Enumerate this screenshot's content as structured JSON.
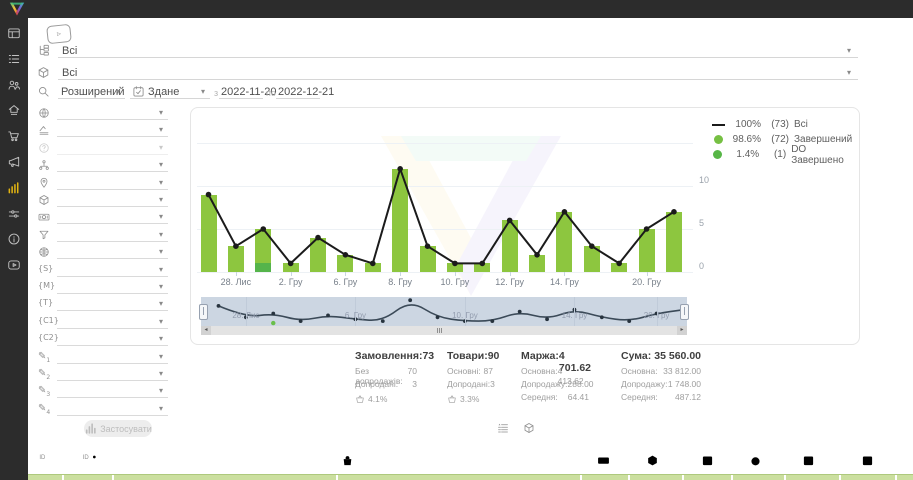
{
  "topbar": {
    "logo": "brand-v-logo"
  },
  "sidebar": {
    "items": [
      {
        "id": "dashboard",
        "icon": "dashboard-icon",
        "active": false
      },
      {
        "id": "orders",
        "icon": "list-icon",
        "active": false
      },
      {
        "id": "clients",
        "icon": "users-icon",
        "active": false
      },
      {
        "id": "company",
        "icon": "home-icon",
        "active": false
      },
      {
        "id": "sales",
        "icon": "cart-icon",
        "active": false
      },
      {
        "id": "marketing",
        "icon": "megaphone-icon",
        "active": false
      },
      {
        "id": "analytics",
        "icon": "chart-icon",
        "active": true
      },
      {
        "id": "settings",
        "icon": "sliders-icon",
        "active": false
      },
      {
        "id": "info",
        "icon": "info-icon",
        "active": false
      },
      {
        "id": "video",
        "icon": "play-icon",
        "active": false
      }
    ]
  },
  "filters": {
    "video_hint_icon": "play-outline-icon",
    "top_rows": [
      {
        "icon": "tree-icon",
        "value": "Всі"
      },
      {
        "icon": "box-icon",
        "value": "Всі"
      }
    ],
    "search": {
      "icon": "search-icon",
      "mode": "Розширений",
      "date_field_icon": "calendar-check-icon",
      "date_field": "Здане",
      "from_label": "з",
      "date_from": "2022-11-20",
      "to_label": "по",
      "date_to": "2022-12-21"
    },
    "side_rows": [
      {
        "icon": "globe-icon"
      },
      {
        "icon": "layers-icon"
      },
      {
        "icon": "help-icon",
        "disabled": true
      },
      {
        "icon": "sitemap-icon"
      },
      {
        "icon": "pin-icon"
      },
      {
        "icon": "box-icon"
      },
      {
        "icon": "money-icon"
      },
      {
        "icon": "funnel-icon"
      },
      {
        "icon": "globe-grid-icon"
      },
      {
        "icon": "text",
        "label": "{S}"
      },
      {
        "icon": "text",
        "label": "{M}"
      },
      {
        "icon": "text",
        "label": "{T}"
      },
      {
        "icon": "text",
        "label": "{C1}"
      },
      {
        "icon": "text",
        "label": "{C2}"
      },
      {
        "icon": "pencil",
        "sub": "1"
      },
      {
        "icon": "pencil",
        "sub": "2"
      },
      {
        "icon": "pencil",
        "sub": "3"
      },
      {
        "icon": "pencil",
        "sub": "4"
      }
    ],
    "apply_label": "Застосувати"
  },
  "chart_data": {
    "type": "bar+line",
    "x_count": 18,
    "series": [
      {
        "name": "Всі",
        "type": "line",
        "color": "#1b1b1b",
        "values": [
          9,
          3,
          5,
          1,
          4,
          2,
          1,
          12,
          3,
          1,
          1,
          6,
          2,
          7,
          3,
          1,
          5,
          7
        ]
      },
      {
        "name": "Завершений",
        "type": "bar",
        "color": "#8dc63f",
        "values": [
          9,
          3,
          4,
          1,
          4,
          2,
          1,
          12,
          3,
          1,
          1,
          6,
          2,
          7,
          3,
          1,
          5,
          7
        ]
      },
      {
        "name": "DO Завершено",
        "type": "bar",
        "color": "#55b44b",
        "values": [
          0,
          0,
          1,
          0,
          0,
          0,
          0,
          0,
          0,
          0,
          0,
          0,
          0,
          0,
          0,
          0,
          0,
          0
        ]
      }
    ],
    "x_ticks": [
      {
        "index": 1,
        "label": "28. Лис"
      },
      {
        "index": 3,
        "label": "2. Гру"
      },
      {
        "index": 5,
        "label": "6. Гру"
      },
      {
        "index": 7,
        "label": "8. Гру"
      },
      {
        "index": 9,
        "label": "10. Гру"
      },
      {
        "index": 11,
        "label": "12. Гру"
      },
      {
        "index": 13,
        "label": "14. Гру"
      },
      {
        "index": 16,
        "label": "20. Гру"
      }
    ],
    "y_ticks": [
      {
        "value": 0,
        "label": "0"
      },
      {
        "value": 5,
        "label": "5"
      },
      {
        "value": 10,
        "label": "10"
      }
    ],
    "ylim": [
      0,
      15
    ],
    "grid": true,
    "legend_position": "top-right",
    "legend": [
      {
        "swatch": "line",
        "color": "#1b1b1b",
        "pct": "100%",
        "count": "(73)",
        "name": "Всі"
      },
      {
        "swatch": "dot",
        "color": "#76c043",
        "pct": "98.6%",
        "count": "(72)",
        "name": "Завершений"
      },
      {
        "swatch": "dot",
        "color": "#57b647",
        "pct": "1.4%",
        "count": "(1)",
        "name": "DO Завершено"
      }
    ],
    "navigator": {
      "labels": [
        {
          "index": 1,
          "label": "28. Лис"
        },
        {
          "index": 5,
          "label": "6. Гру"
        },
        {
          "index": 9,
          "label": "10. Гру"
        },
        {
          "index": 13,
          "label": "14. Гру"
        },
        {
          "index": 16,
          "label": "20. Гру"
        }
      ],
      "marker_index": 2,
      "marker_color": "#6abf4b"
    }
  },
  "stats": {
    "columns": [
      {
        "title": "Замовлення:",
        "value": "73",
        "rows": [
          {
            "label": "Без допродажів:",
            "value": "70"
          },
          {
            "label": "Допродані:",
            "value": "3"
          }
        ],
        "rate": {
          "icon": "basket-icon",
          "value": "4.1%"
        }
      },
      {
        "title": "Товари:",
        "value": "90",
        "rows": [
          {
            "label": "Основні:",
            "value": "87"
          },
          {
            "label": "Допродані:",
            "value": "3"
          }
        ],
        "rate": {
          "icon": "basket-icon",
          "value": "3.3%"
        }
      },
      {
        "title": "Маржа:",
        "value": "4 701.62",
        "rows": [
          {
            "label": "Основна:",
            "value": "4 413.62"
          },
          {
            "label": "Допродажу:",
            "value": "288.00"
          },
          {
            "label": "Середня:",
            "value": "64.41"
          }
        ]
      },
      {
        "title": "Сума:",
        "value": "35 560.00",
        "rows": [
          {
            "label": "Основна:",
            "value": "33 812.00"
          },
          {
            "label": "Допродажу:",
            "value": "1 748.00"
          },
          {
            "label": "Середня:",
            "value": "487.12"
          }
        ]
      }
    ]
  },
  "view_toggles": [
    {
      "icon": "list-sort-icon"
    },
    {
      "icon": "box-icon"
    }
  ],
  "footer": {
    "left_icons": [
      {
        "icon": "id-lines-icon",
        "label": "ID"
      },
      {
        "icon": "id-dash-icon",
        "label": "ID-o"
      }
    ],
    "icons": [
      {
        "icon": "bag-icon"
      },
      {
        "icon": "money-icon"
      },
      {
        "icon": "box-icon"
      },
      {
        "icon": "calendar-icon"
      },
      {
        "icon": "stopwatch-icon"
      },
      {
        "icon": "calendar-clock-icon"
      },
      {
        "icon": "calendar-export-icon"
      }
    ]
  },
  "colors": {
    "bar": "#8dc63f",
    "bar_do": "#55b44b",
    "line": "#1b1b1b",
    "accent_active": "#e2b411",
    "nav_bg": "#ccd6e2",
    "table_header": "#cbdf9f"
  }
}
